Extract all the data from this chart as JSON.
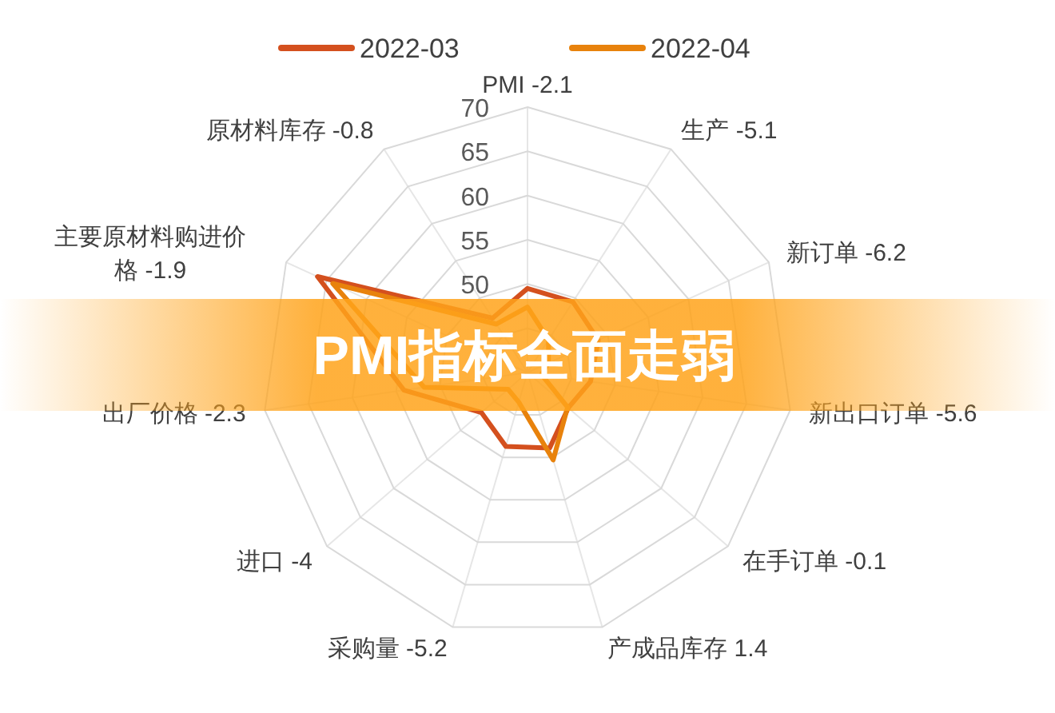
{
  "chart_data": {
    "type": "radar",
    "title": "PMI指标全面走弱",
    "categories": [
      "PMI -2.1",
      "生产 -5.1",
      "新订单 -6.2",
      "新出口订单 -5.6",
      "在手订单 -0.1",
      "产成品库存 1.4",
      "采购量 -5.2",
      "进口 -4",
      "出厂价格 -2.3",
      "主要原材料购进价格 -1.9",
      "原材料库存 -0.8"
    ],
    "series": [
      {
        "name": "2022-03",
        "color": "#d4501e",
        "values": [
          49.5,
          49.5,
          48.8,
          47.2,
          46.1,
          48.9,
          48.7,
          46.9,
          54.1,
          66.1,
          47.3
        ]
      },
      {
        "name": "2022-04",
        "color": "#e8820c",
        "values": [
          47.4,
          44.4,
          42.6,
          41.6,
          46.0,
          50.3,
          43.5,
          42.9,
          51.8,
          64.2,
          46.5
        ]
      }
    ],
    "ylim": [
      40,
      70
    ],
    "yticks": [
      50,
      55,
      60,
      65,
      70
    ],
    "grid": true,
    "legend": "top",
    "marker": "none",
    "line_style": "solid"
  }
}
